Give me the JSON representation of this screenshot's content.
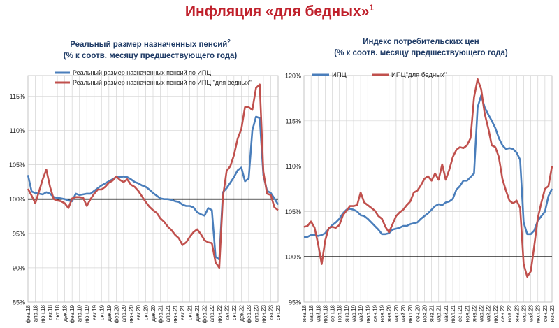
{
  "title": {
    "text": "Инфляция «для бедных»",
    "footnote": "1"
  },
  "charts": [
    {
      "subtitle1": "Реальный размер назначенных пенсий",
      "subtitle_footnote": "2",
      "subtitle2": "(% к соотв. месяцу предшествующего года)"
    },
    {
      "subtitle1": "Индекс потребительских цен",
      "subtitle2": "(% к соотв. месяцу предшествующего года)"
    }
  ],
  "chart_data": [
    {
      "type": "line",
      "ylim": [
        85,
        118
      ],
      "yticks": [
        85,
        90,
        95,
        100,
        105,
        110,
        115
      ],
      "ytick_labels": [
        "85%",
        "90%",
        "95%",
        "100%",
        "105%",
        "110%",
        "115%"
      ],
      "reference_line": 100,
      "x_labels": [
        "фев.18",
        "апр.18",
        "июн.18",
        "авг.18",
        "окт.18",
        "дек.18",
        "фев.19",
        "апр.19",
        "июн.19",
        "авг.19",
        "окт.19",
        "дек.19",
        "фев.20",
        "апр.20",
        "июн.20",
        "авг.20",
        "окт.20",
        "дек.20",
        "фев.21",
        "апр.21",
        "июн.21",
        "авг.21",
        "окт.21",
        "дек.21",
        "фев.22",
        "апр.22",
        "июн.22",
        "авг.22",
        "окт.22",
        "дек.22",
        "фев.23",
        "апр.23",
        "июн.23",
        "авг.23",
        "окт.23"
      ],
      "n_points": 69,
      "legend_position": "top",
      "series": [
        {
          "name": "Реальный размер назначенных пенсий по ИПЦ",
          "color": "#4a7ebb",
          "values": [
            103.5,
            101.1,
            100.9,
            100.8,
            100.7,
            101.0,
            100.8,
            100.3,
            100.2,
            100.1,
            100.0,
            99.8,
            99.7,
            100.8,
            100.6,
            100.7,
            100.8,
            100.8,
            101.2,
            101.6,
            102.0,
            102.3,
            102.6,
            102.9,
            103.2,
            103.2,
            103.3,
            103.2,
            102.9,
            102.5,
            102.3,
            102.0,
            101.8,
            101.4,
            100.9,
            100.5,
            100.1,
            100.0,
            100.0,
            99.9,
            99.7,
            99.6,
            99.2,
            99.0,
            99.0,
            98.8,
            98.1,
            97.8,
            97.6,
            98.7,
            98.4,
            91.6,
            91.2,
            101.0,
            101.6,
            102.4,
            103.2,
            104.2,
            104.6,
            102.6,
            103.0,
            110.0,
            112.0,
            111.8,
            103.5,
            101.2,
            100.9,
            100.1,
            99.2
          ]
        },
        {
          "name": "Реальный размер назначенных пенсий по ИПЦ \"для бедных\"",
          "color": "#c0504d",
          "values": [
            101.5,
            100.5,
            99.4,
            101.1,
            102.9,
            104.3,
            101.8,
            100.0,
            99.8,
            99.7,
            99.4,
            98.7,
            100.1,
            100.3,
            100.3,
            100.2,
            99.0,
            100.0,
            100.8,
            101.4,
            101.4,
            101.8,
            102.4,
            102.7,
            103.3,
            102.8,
            102.5,
            102.9,
            102.1,
            101.8,
            101.2,
            100.4,
            99.6,
            98.9,
            98.4,
            98.0,
            97.2,
            96.7,
            96.0,
            95.5,
            94.8,
            94.3,
            93.3,
            93.7,
            94.5,
            95.2,
            95.6,
            94.9,
            94.0,
            93.7,
            93.6,
            90.8,
            90.0,
            100.3,
            104.1,
            104.8,
            106.4,
            108.8,
            110.2,
            113.4,
            113.4,
            113.0,
            116.2,
            116.7,
            104.0,
            100.8,
            100.6,
            98.8,
            98.4
          ]
        }
      ]
    },
    {
      "type": "line",
      "ylim": [
        95,
        120
      ],
      "yticks": [
        95,
        100,
        105,
        110,
        115,
        120
      ],
      "ytick_labels": [
        "95%",
        "100%",
        "105%",
        "110%",
        "115%",
        "120%"
      ],
      "reference_line": 100,
      "x_labels": [
        "янв.18",
        "мар.18",
        "май.18",
        "июл.18",
        "сен.18",
        "ноя.18",
        "янв.19",
        "мар.19",
        "май.19",
        "июл.19",
        "сен.19",
        "ноя.19",
        "янв.20",
        "мар.20",
        "май.20",
        "июл.20",
        "сен.20",
        "ноя.20",
        "янв.21",
        "мар.21",
        "май.21",
        "июл.21",
        "сен.21",
        "ноя.21",
        "янв.22",
        "мар.22",
        "май.22",
        "июл.22",
        "сен.22",
        "ноя.22",
        "янв.23",
        "мар.23",
        "май.23",
        "июл.23",
        "сен.23",
        "ноя.23"
      ],
      "n_points": 71,
      "legend_position": "top",
      "series": [
        {
          "name": "ИПЦ",
          "color": "#4a7ebb",
          "values": [
            102.2,
            102.2,
            102.4,
            102.4,
            102.3,
            102.4,
            102.6,
            103.1,
            103.5,
            103.8,
            104.2,
            104.8,
            105.2,
            105.3,
            105.2,
            105.0,
            104.6,
            104.5,
            104.2,
            103.8,
            103.4,
            103.0,
            102.5,
            102.5,
            102.6,
            103.0,
            103.1,
            103.2,
            103.4,
            103.4,
            103.6,
            103.7,
            103.8,
            104.2,
            104.5,
            104.8,
            105.2,
            105.6,
            105.8,
            105.7,
            106.0,
            106.1,
            106.4,
            107.4,
            107.8,
            108.4,
            108.4,
            108.8,
            109.2,
            116.5,
            117.8,
            116.5,
            115.7,
            115.0,
            114.2,
            113.1,
            112.3,
            111.9,
            112.0,
            111.9,
            111.5,
            110.7,
            103.8,
            102.5,
            102.5,
            102.9,
            104.0,
            104.5,
            105.0,
            106.7,
            107.5
          ]
        },
        {
          "name": "ИПЦ\"для бедных\"",
          "color": "#c0504d",
          "values": [
            103.3,
            103.4,
            103.9,
            103.2,
            101.4,
            99.2,
            101.8,
            103.2,
            103.3,
            103.2,
            103.5,
            104.6,
            105.1,
            105.6,
            105.6,
            105.7,
            107.1,
            106.0,
            105.7,
            105.4,
            105.1,
            104.5,
            104.2,
            103.3,
            102.7,
            103.6,
            104.5,
            104.9,
            105.2,
            105.7,
            106.1,
            107.1,
            107.3,
            107.9,
            108.6,
            108.9,
            108.4,
            109.2,
            108.5,
            110.2,
            108.5,
            109.6,
            111.0,
            111.8,
            112.1,
            112.0,
            112.3,
            113.1,
            117.6,
            119.6,
            118.5,
            115.8,
            114.2,
            112.3,
            112.1,
            111.0,
            108.6,
            107.3,
            106.2,
            105.9,
            106.2,
            105.4,
            99.2,
            97.8,
            98.4,
            101.2,
            104.3,
            106.0,
            107.5,
            107.8,
            110.0
          ]
        }
      ]
    }
  ]
}
